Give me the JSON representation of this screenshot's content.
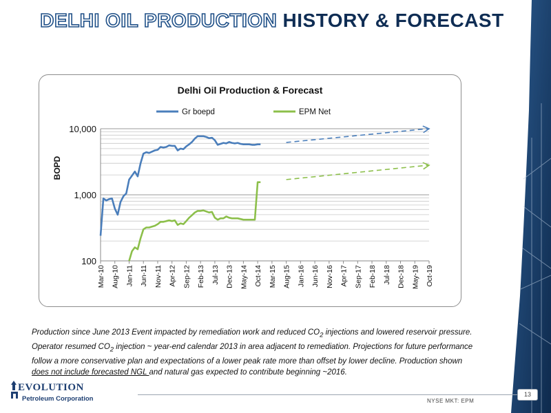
{
  "slide": {
    "title_part1": "DELHI OIL PRODUCTION",
    "title_part2": "HISTORY & FORECAST",
    "caption_parts": [
      "Production since June 2013 Event impacted by remediation work and reduced CO",
      "2",
      " injections and lowered reservoir pressure. Operator resumed CO",
      "2",
      " injection ~ year-end calendar 2013 in area adjacent to remediation. Projections for future performance follow a more conservative plan and expectations of a lower peak rate more than offset by lower decline. Production shown ",
      "does not include forecasted NGL ",
      "and natural gas expected to contribute beginning ~2016."
    ],
    "logo_brand": "EVOLUTION",
    "logo_sub": "Petroleum Corporation",
    "ticker": "NYSE MKT: EPM",
    "page_number": "13"
  },
  "colors": {
    "title_outline": "#1e4f87",
    "title_dark": "#0f2d54",
    "series_gr": "#4a7ebb",
    "series_epm": "#8cbf4a",
    "side_panel": "#1a3f6d"
  },
  "chart_data": {
    "type": "line",
    "title": "Delhi Oil Production & Forecast",
    "ylabel": "BOPD",
    "yscale": "log",
    "ylim": [
      100,
      10000
    ],
    "ytick_labels": [
      "100",
      "1,000",
      "10,000"
    ],
    "x_tick_labels": [
      "Mar-10",
      "Aug-10",
      "Jan-11",
      "Jun-11",
      "Nov-11",
      "Apr-12",
      "Sep-12",
      "Feb-13",
      "Jul-13",
      "Dec-13",
      "May-14",
      "Oct-14",
      "Mar-15",
      "Aug-15",
      "Jan-16",
      "Jun-16",
      "Nov-16",
      "Apr-17",
      "Sep-17",
      "Feb-18",
      "Jul-18",
      "Dec-18",
      "May-19",
      "Oct-19"
    ],
    "x_range_months": "Mar-10 to Oct-19",
    "legend_position": "top",
    "series": [
      {
        "name": "Gr boepd",
        "x": [
          "Mar-10",
          "Apr-10",
          "May-10",
          "Jun-10",
          "Jul-10",
          "Aug-10",
          "Sep-10",
          "Oct-10",
          "Nov-10",
          "Dec-10",
          "Jan-11",
          "Feb-11",
          "Mar-11",
          "Apr-11",
          "May-11",
          "Jun-11",
          "Jul-11",
          "Aug-11",
          "Sep-11",
          "Oct-11",
          "Nov-11",
          "Dec-11",
          "Jan-12",
          "Feb-12",
          "Mar-12",
          "Apr-12",
          "May-12",
          "Jun-12",
          "Jul-12",
          "Aug-12",
          "Sep-12",
          "Oct-12",
          "Nov-12",
          "Dec-12",
          "Jan-13",
          "Feb-13",
          "Mar-13",
          "Apr-13",
          "May-13",
          "Jun-13",
          "Jul-13",
          "Aug-13",
          "Sep-13",
          "Oct-13",
          "Nov-13",
          "Dec-13",
          "Jan-14",
          "Feb-14",
          "Mar-14",
          "Apr-14",
          "May-14",
          "Jun-14",
          "Jul-14",
          "Aug-14",
          "Sep-14",
          "Oct-14",
          "Nov-14"
        ],
        "values": [
          240,
          880,
          820,
          860,
          880,
          620,
          500,
          780,
          950,
          1050,
          1700,
          1950,
          2250,
          1900,
          3000,
          4200,
          4400,
          4300,
          4500,
          4700,
          4800,
          5300,
          5200,
          5300,
          5600,
          5500,
          5500,
          4700,
          5000,
          4900,
          5400,
          5800,
          6300,
          7100,
          7700,
          7700,
          7700,
          7500,
          7200,
          7300,
          6700,
          5700,
          5900,
          6100,
          6000,
          6300,
          6100,
          6000,
          6100,
          5900,
          5800,
          5800,
          5800,
          5700,
          5700,
          5800,
          5800
        ]
      },
      {
        "name": "EPM Net",
        "x": [
          "Jan-11",
          "Feb-11",
          "Mar-11",
          "Apr-11",
          "May-11",
          "Jun-11",
          "Jul-11",
          "Aug-11",
          "Sep-11",
          "Oct-11",
          "Nov-11",
          "Dec-11",
          "Jan-12",
          "Feb-12",
          "Mar-12",
          "Apr-12",
          "May-12",
          "Jun-12",
          "Jul-12",
          "Aug-12",
          "Sep-12",
          "Oct-12",
          "Nov-12",
          "Dec-12",
          "Jan-13",
          "Feb-13",
          "Mar-13",
          "Apr-13",
          "May-13",
          "Jun-13",
          "Jul-13",
          "Aug-13",
          "Sep-13",
          "Oct-13",
          "Nov-13",
          "Dec-13",
          "Jan-14",
          "Feb-14",
          "Mar-14",
          "Apr-14",
          "May-14",
          "Jun-14",
          "Jul-14",
          "Aug-14",
          "Sep-14",
          "Oct-14",
          "Nov-14"
        ],
        "values": [
          100,
          140,
          160,
          150,
          220,
          300,
          320,
          320,
          330,
          340,
          360,
          390,
          390,
          400,
          410,
          400,
          410,
          350,
          370,
          360,
          400,
          450,
          490,
          540,
          570,
          570,
          580,
          560,
          540,
          550,
          450,
          420,
          440,
          440,
          470,
          450,
          440,
          440,
          440,
          430,
          420,
          420,
          420,
          420,
          420,
          1550,
          1550
        ]
      }
    ],
    "forecast": [
      {
        "series": "Gr boepd",
        "from": "Aug-15",
        "to": "Oct-19",
        "start_value": 6200,
        "end_value": 10000
      },
      {
        "series": "EPM Net",
        "from": "Aug-15",
        "to": "Oct-19",
        "start_value": 1700,
        "end_value": 2800
      }
    ]
  }
}
